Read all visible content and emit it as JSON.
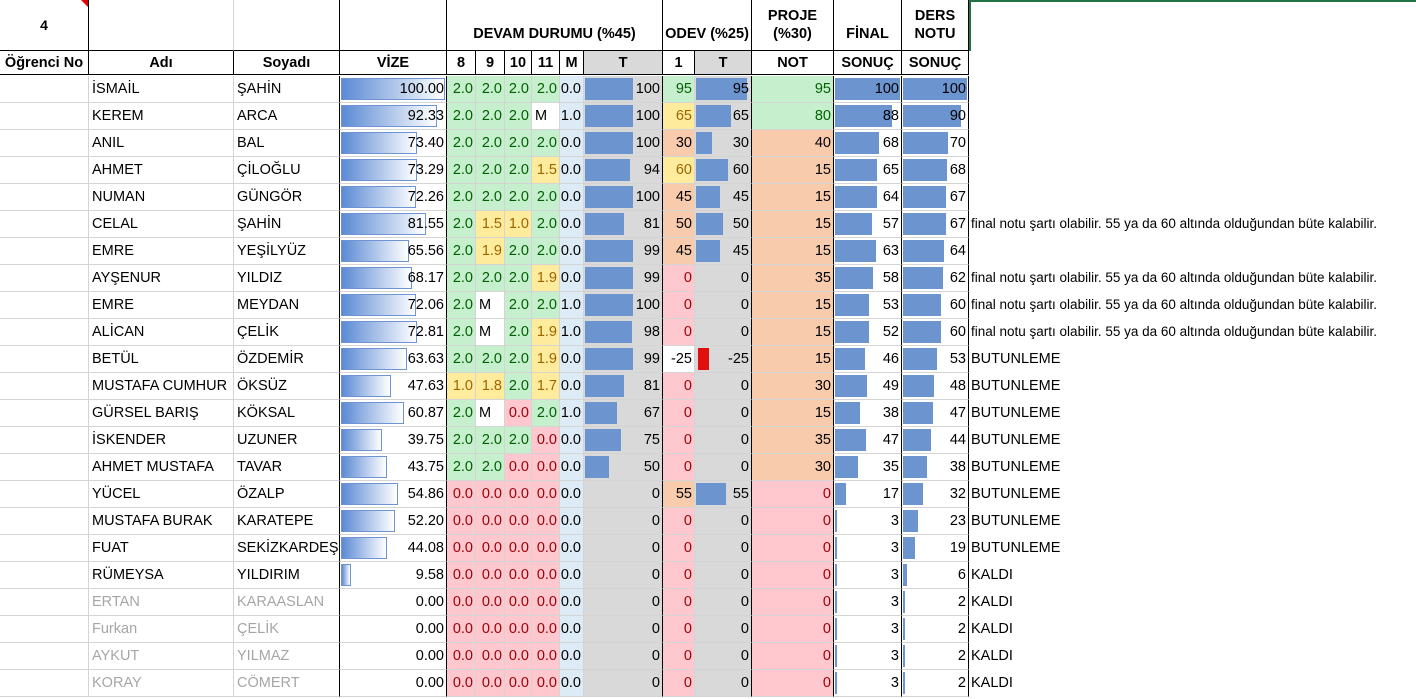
{
  "group_number": "4",
  "header": {
    "ogrenci_no": "Öğrenci No",
    "adi": "Adı",
    "soyadi": "Soyadı",
    "vize": "VİZE",
    "devam": "DEVAM DURUMU (%45)",
    "devam_cols": [
      "8",
      "9",
      "10",
      "11",
      "M",
      "T"
    ],
    "odev": "ODEV (%25)",
    "odev_cols": [
      "1",
      "T"
    ],
    "proje": "PROJE (%30)",
    "proje_sub": "NOT",
    "final": "FİNAL",
    "final_sub": "SONUÇ",
    "ders_notu": "DERS NOTU",
    "ders_sub": "SONUÇ"
  },
  "colors": {
    "green": "#c6efce",
    "green_text": "#006100",
    "yellow": "#ffeb9c",
    "yellow_text": "#9c6500",
    "red": "#ffc7ce",
    "red_text": "#9c0006",
    "orange": "#f8cbad",
    "grey": "#d9d9d9",
    "blue_light": "#ddebf7"
  },
  "rows": [
    {
      "ad": "İSMAİL",
      "soyad": "ŞAHİN",
      "vize": "100.00",
      "v": 100,
      "d": [
        "2.0",
        "2.0",
        "2.0",
        "2.0"
      ],
      "dc": [
        "g",
        "g",
        "g",
        "g"
      ],
      "m": "0.0",
      "t": "100",
      "tv": 100,
      "o1": "95",
      "o1c": "g",
      "ot": "95",
      "otv": 95,
      "pn": "95",
      "pc": "g",
      "fin": "100",
      "finv": 100,
      "dn": "100",
      "dnv": 100,
      "note": "",
      "grey": false
    },
    {
      "ad": "KEREM",
      "soyad": "ARCA",
      "vize": "92.33",
      "v": 92.33,
      "d": [
        "2.0",
        "2.0",
        "2.0",
        "M"
      ],
      "dc": [
        "g",
        "g",
        "g",
        "w"
      ],
      "m": "1.0",
      "t": "100",
      "tv": 100,
      "o1": "65",
      "o1c": "y",
      "ot": "65",
      "otv": 65,
      "pn": "80",
      "pc": "g",
      "fin": "88",
      "finv": 88,
      "dn": "90",
      "dnv": 90,
      "note": "",
      "grey": false
    },
    {
      "ad": "ANIL",
      "soyad": "BAL",
      "vize": "73.40",
      "v": 73.4,
      "d": [
        "2.0",
        "2.0",
        "2.0",
        "2.0"
      ],
      "dc": [
        "g",
        "g",
        "g",
        "g"
      ],
      "m": "0.0",
      "t": "100",
      "tv": 100,
      "o1": "30",
      "o1c": "o",
      "ot": "30",
      "otv": 30,
      "pn": "40",
      "pc": "o",
      "fin": "68",
      "finv": 68,
      "dn": "70",
      "dnv": 70,
      "note": "",
      "grey": false
    },
    {
      "ad": "AHMET",
      "soyad": "ÇİLOĞLU",
      "vize": "73.29",
      "v": 73.29,
      "d": [
        "2.0",
        "2.0",
        "2.0",
        "1.5"
      ],
      "dc": [
        "g",
        "g",
        "g",
        "y"
      ],
      "m": "0.0",
      "t": "94",
      "tv": 94,
      "o1": "60",
      "o1c": "y",
      "ot": "60",
      "otv": 60,
      "pn": "15",
      "pc": "o",
      "fin": "65",
      "finv": 65,
      "dn": "68",
      "dnv": 68,
      "note": "",
      "grey": false
    },
    {
      "ad": "NUMAN",
      "soyad": "GÜNGÖR",
      "vize": "72.26",
      "v": 72.26,
      "d": [
        "2.0",
        "2.0",
        "2.0",
        "2.0"
      ],
      "dc": [
        "g",
        "g",
        "g",
        "g"
      ],
      "m": "0.0",
      "t": "100",
      "tv": 100,
      "o1": "45",
      "o1c": "o",
      "ot": "45",
      "otv": 45,
      "pn": "15",
      "pc": "o",
      "fin": "64",
      "finv": 64,
      "dn": "67",
      "dnv": 67,
      "note": "",
      "grey": false
    },
    {
      "ad": "CELAL",
      "soyad": "ŞAHİN",
      "vize": "81.55",
      "v": 81.55,
      "d": [
        "2.0",
        "1.5",
        "1.0",
        "2.0"
      ],
      "dc": [
        "g",
        "y",
        "y",
        "g"
      ],
      "m": "0.0",
      "t": "81",
      "tv": 81,
      "o1": "50",
      "o1c": "o",
      "ot": "50",
      "otv": 50,
      "pn": "15",
      "pc": "o",
      "fin": "57",
      "finv": 57,
      "dn": "67",
      "dnv": 67,
      "note": "final notu şartı olabilir. 55 ya da 60 altında olduğundan büte kalabilir.",
      "grey": false
    },
    {
      "ad": "EMRE",
      "soyad": "YEŞİLYÜZ",
      "vize": "65.56",
      "v": 65.56,
      "d": [
        "2.0",
        "1.9",
        "2.0",
        "2.0"
      ],
      "dc": [
        "g",
        "y",
        "g",
        "g"
      ],
      "m": "0.0",
      "t": "99",
      "tv": 99,
      "o1": "45",
      "o1c": "o",
      "ot": "45",
      "otv": 45,
      "pn": "15",
      "pc": "o",
      "fin": "63",
      "finv": 63,
      "dn": "64",
      "dnv": 64,
      "note": "",
      "grey": false
    },
    {
      "ad": "AYŞENUR",
      "soyad": "YILDIZ",
      "vize": "68.17",
      "v": 68.17,
      "d": [
        "2.0",
        "2.0",
        "2.0",
        "1.9"
      ],
      "dc": [
        "g",
        "g",
        "g",
        "y"
      ],
      "m": "0.0",
      "t": "99",
      "tv": 99,
      "o1": "0",
      "o1c": "r",
      "ot": "0",
      "otv": 0,
      "pn": "35",
      "pc": "o",
      "fin": "58",
      "finv": 58,
      "dn": "62",
      "dnv": 62,
      "note": "final notu şartı olabilir. 55 ya da 60 altında olduğundan büte kalabilir.",
      "grey": false
    },
    {
      "ad": "EMRE",
      "soyad": "MEYDAN",
      "vize": "72.06",
      "v": 72.06,
      "d": [
        "2.0",
        "M",
        "2.0",
        "2.0"
      ],
      "dc": [
        "g",
        "w",
        "g",
        "g"
      ],
      "m": "1.0",
      "t": "100",
      "tv": 100,
      "o1": "0",
      "o1c": "r",
      "ot": "0",
      "otv": 0,
      "pn": "15",
      "pc": "o",
      "fin": "53",
      "finv": 53,
      "dn": "60",
      "dnv": 60,
      "note": "final notu şartı olabilir. 55 ya da 60 altında olduğundan büte kalabilir.",
      "grey": false
    },
    {
      "ad": "ALİCAN",
      "soyad": "ÇELİK",
      "vize": "72.81",
      "v": 72.81,
      "d": [
        "2.0",
        "M",
        "2.0",
        "1.9"
      ],
      "dc": [
        "g",
        "w",
        "g",
        "y"
      ],
      "m": "1.0",
      "t": "98",
      "tv": 98,
      "o1": "0",
      "o1c": "r",
      "ot": "0",
      "otv": 0,
      "pn": "15",
      "pc": "o",
      "fin": "52",
      "finv": 52,
      "dn": "60",
      "dnv": 60,
      "note": "final notu şartı olabilir. 55 ya da 60 altında olduğundan büte kalabilir.",
      "grey": false
    },
    {
      "ad": "BETÜL",
      "soyad": "ÖZDEMİR",
      "vize": "63.63",
      "v": 63.63,
      "d": [
        "2.0",
        "2.0",
        "2.0",
        "1.9"
      ],
      "dc": [
        "g",
        "g",
        "g",
        "y"
      ],
      "m": "0.0",
      "t": "99",
      "tv": 99,
      "o1": "-25",
      "o1c": "w",
      "ot": "-25",
      "otv": -25,
      "pn": "15",
      "pc": "o",
      "fin": "46",
      "finv": 46,
      "dn": "53",
      "dnv": 53,
      "note": "BUTUNLEME",
      "grey": false
    },
    {
      "ad": "MUSTAFA CUMHUR",
      "soyad": "ÖKSÜZ",
      "vize": "47.63",
      "v": 47.63,
      "d": [
        "1.0",
        "1.8",
        "2.0",
        "1.7"
      ],
      "dc": [
        "y",
        "y",
        "g",
        "y"
      ],
      "m": "0.0",
      "t": "81",
      "tv": 81,
      "o1": "0",
      "o1c": "r",
      "ot": "0",
      "otv": 0,
      "pn": "30",
      "pc": "o",
      "fin": "49",
      "finv": 49,
      "dn": "48",
      "dnv": 48,
      "note": "BUTUNLEME",
      "grey": false
    },
    {
      "ad": "GÜRSEL BARIŞ",
      "soyad": "KÖKSAL",
      "vize": "60.87",
      "v": 60.87,
      "d": [
        "2.0",
        "M",
        "0.0",
        "2.0"
      ],
      "dc": [
        "g",
        "w",
        "r",
        "g"
      ],
      "m": "1.0",
      "t": "67",
      "tv": 67,
      "o1": "0",
      "o1c": "r",
      "ot": "0",
      "otv": 0,
      "pn": "15",
      "pc": "o",
      "fin": "38",
      "finv": 38,
      "dn": "47",
      "dnv": 47,
      "note": "BUTUNLEME",
      "grey": false
    },
    {
      "ad": "İSKENDER",
      "soyad": "UZUNER",
      "vize": "39.75",
      "v": 39.75,
      "d": [
        "2.0",
        "2.0",
        "2.0",
        "0.0"
      ],
      "dc": [
        "g",
        "g",
        "g",
        "r"
      ],
      "m": "0.0",
      "t": "75",
      "tv": 75,
      "o1": "0",
      "o1c": "r",
      "ot": "0",
      "otv": 0,
      "pn": "35",
      "pc": "o",
      "fin": "47",
      "finv": 47,
      "dn": "44",
      "dnv": 44,
      "note": "BUTUNLEME",
      "grey": false
    },
    {
      "ad": "AHMET MUSTAFA",
      "soyad": "TAVAR",
      "vize": "43.75",
      "v": 43.75,
      "d": [
        "2.0",
        "2.0",
        "0.0",
        "0.0"
      ],
      "dc": [
        "g",
        "g",
        "r",
        "r"
      ],
      "m": "0.0",
      "t": "50",
      "tv": 50,
      "o1": "0",
      "o1c": "r",
      "ot": "0",
      "otv": 0,
      "pn": "30",
      "pc": "o",
      "fin": "35",
      "finv": 35,
      "dn": "38",
      "dnv": 38,
      "note": "BUTUNLEME",
      "grey": false
    },
    {
      "ad": "YÜCEL",
      "soyad": "ÖZALP",
      "vize": "54.86",
      "v": 54.86,
      "d": [
        "0.0",
        "0.0",
        "0.0",
        "0.0"
      ],
      "dc": [
        "r",
        "r",
        "r",
        "r"
      ],
      "m": "0.0",
      "t": "0",
      "tv": 0,
      "o1": "55",
      "o1c": "o",
      "ot": "55",
      "otv": 55,
      "pn": "0",
      "pc": "r",
      "fin": "17",
      "finv": 17,
      "dn": "32",
      "dnv": 32,
      "note": "BUTUNLEME",
      "grey": false
    },
    {
      "ad": "MUSTAFA BURAK",
      "soyad": "KARATEPE",
      "vize": "52.20",
      "v": 52.2,
      "d": [
        "0.0",
        "0.0",
        "0.0",
        "0.0"
      ],
      "dc": [
        "r",
        "r",
        "r",
        "r"
      ],
      "m": "0.0",
      "t": "0",
      "tv": 0,
      "o1": "0",
      "o1c": "r",
      "ot": "0",
      "otv": 0,
      "pn": "0",
      "pc": "r",
      "fin": "3",
      "finv": 3,
      "dn": "23",
      "dnv": 23,
      "note": "BUTUNLEME",
      "grey": false
    },
    {
      "ad": "FUAT",
      "soyad": "SEKİZKARDEŞ",
      "vize": "44.08",
      "v": 44.08,
      "d": [
        "0.0",
        "0.0",
        "0.0",
        "0.0"
      ],
      "dc": [
        "r",
        "r",
        "r",
        "r"
      ],
      "m": "0.0",
      "t": "0",
      "tv": 0,
      "o1": "0",
      "o1c": "r",
      "ot": "0",
      "otv": 0,
      "pn": "0",
      "pc": "r",
      "fin": "3",
      "finv": 3,
      "dn": "19",
      "dnv": 19,
      "note": "BUTUNLEME",
      "grey": false
    },
    {
      "ad": "RÜMEYSA",
      "soyad": "YILDIRIM",
      "vize": "9.58",
      "v": 9.58,
      "d": [
        "0.0",
        "0.0",
        "0.0",
        "0.0"
      ],
      "dc": [
        "r",
        "r",
        "r",
        "r"
      ],
      "m": "0.0",
      "t": "0",
      "tv": 0,
      "o1": "0",
      "o1c": "r",
      "ot": "0",
      "otv": 0,
      "pn": "0",
      "pc": "r",
      "fin": "3",
      "finv": 3,
      "dn": "6",
      "dnv": 6,
      "note": "KALDI",
      "grey": false
    },
    {
      "ad": "ERTAN",
      "soyad": "KARAASLAN",
      "vize": "0.00",
      "v": 0,
      "d": [
        "0.0",
        "0.0",
        "0.0",
        "0.0"
      ],
      "dc": [
        "r",
        "r",
        "r",
        "r"
      ],
      "m": "0.0",
      "t": "0",
      "tv": 0,
      "o1": "0",
      "o1c": "r",
      "ot": "0",
      "otv": 0,
      "pn": "0",
      "pc": "r",
      "fin": "3",
      "finv": 3,
      "dn": "2",
      "dnv": 2,
      "note": "KALDI",
      "grey": true
    },
    {
      "ad": "Furkan",
      "soyad": "ÇELİK",
      "vize": "0.00",
      "v": 0,
      "d": [
        "0.0",
        "0.0",
        "0.0",
        "0.0"
      ],
      "dc": [
        "r",
        "r",
        "r",
        "r"
      ],
      "m": "0.0",
      "t": "0",
      "tv": 0,
      "o1": "0",
      "o1c": "r",
      "ot": "0",
      "otv": 0,
      "pn": "0",
      "pc": "r",
      "fin": "3",
      "finv": 3,
      "dn": "2",
      "dnv": 2,
      "note": "KALDI",
      "grey": true
    },
    {
      "ad": "AYKUT",
      "soyad": "YILMAZ",
      "vize": "0.00",
      "v": 0,
      "d": [
        "0.0",
        "0.0",
        "0.0",
        "0.0"
      ],
      "dc": [
        "r",
        "r",
        "r",
        "r"
      ],
      "m": "0.0",
      "t": "0",
      "tv": 0,
      "o1": "0",
      "o1c": "r",
      "ot": "0",
      "otv": 0,
      "pn": "0",
      "pc": "r",
      "fin": "3",
      "finv": 3,
      "dn": "2",
      "dnv": 2,
      "note": "KALDI",
      "grey": true
    },
    {
      "ad": "KORAY",
      "soyad": "CÖMERT",
      "vize": "0.00",
      "v": 0,
      "d": [
        "0.0",
        "0.0",
        "0.0",
        "0.0"
      ],
      "dc": [
        "r",
        "r",
        "r",
        "r"
      ],
      "m": "0.0",
      "t": "0",
      "tv": 0,
      "o1": "0",
      "o1c": "r",
      "ot": "0",
      "otv": 0,
      "pn": "0",
      "pc": "r",
      "fin": "3",
      "finv": 3,
      "dn": "2",
      "dnv": 2,
      "note": "KALDI",
      "grey": true
    }
  ]
}
